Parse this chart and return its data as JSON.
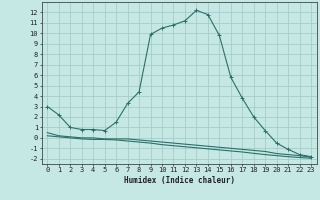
{
  "xlabel": "Humidex (Indice chaleur)",
  "xlim": [
    -0.5,
    23.5
  ],
  "ylim": [
    -2.5,
    13.0
  ],
  "background_color": "#c5e8e5",
  "grid_color": "#9fc8c5",
  "line_color": "#2a7068",
  "line1_x": [
    0,
    1,
    2,
    3,
    4,
    5,
    6,
    7,
    8,
    9,
    10,
    11,
    12,
    13,
    14,
    15,
    16,
    17,
    18,
    19,
    20,
    21,
    22,
    23
  ],
  "line1_y": [
    3.0,
    2.2,
    1.0,
    0.8,
    0.8,
    0.7,
    1.5,
    3.3,
    4.4,
    9.9,
    10.5,
    10.8,
    11.2,
    12.2,
    11.8,
    9.8,
    5.8,
    3.8,
    2.0,
    0.7,
    -0.5,
    -1.1,
    -1.6,
    -1.8
  ],
  "line2_x": [
    0,
    1,
    2,
    3,
    4,
    5,
    6,
    7,
    8,
    9,
    10,
    11,
    12,
    13,
    14,
    15,
    16,
    17,
    18,
    19,
    20,
    21,
    22,
    23
  ],
  "line2_y": [
    0.5,
    0.2,
    0.1,
    0.0,
    0.0,
    -0.1,
    -0.1,
    -0.1,
    -0.2,
    -0.3,
    -0.4,
    -0.5,
    -0.6,
    -0.7,
    -0.8,
    -0.9,
    -1.0,
    -1.1,
    -1.2,
    -1.3,
    -1.5,
    -1.6,
    -1.7,
    -1.85
  ],
  "line3_x": [
    0,
    1,
    2,
    3,
    4,
    5,
    6,
    7,
    8,
    9,
    10,
    11,
    12,
    13,
    14,
    15,
    16,
    17,
    18,
    19,
    20,
    21,
    22,
    23
  ],
  "line3_y": [
    0.2,
    0.1,
    0.0,
    -0.1,
    -0.15,
    -0.15,
    -0.2,
    -0.3,
    -0.4,
    -0.5,
    -0.65,
    -0.75,
    -0.85,
    -0.95,
    -1.05,
    -1.15,
    -1.25,
    -1.35,
    -1.48,
    -1.6,
    -1.7,
    -1.8,
    -1.88,
    -1.95
  ],
  "yticks": [
    -2,
    -1,
    0,
    1,
    2,
    3,
    4,
    5,
    6,
    7,
    8,
    9,
    10,
    11,
    12
  ],
  "xticks": [
    0,
    1,
    2,
    3,
    4,
    5,
    6,
    7,
    8,
    9,
    10,
    11,
    12,
    13,
    14,
    15,
    16,
    17,
    18,
    19,
    20,
    21,
    22,
    23
  ],
  "xlabel_fontsize": 5.5,
  "tick_fontsize": 5.0
}
